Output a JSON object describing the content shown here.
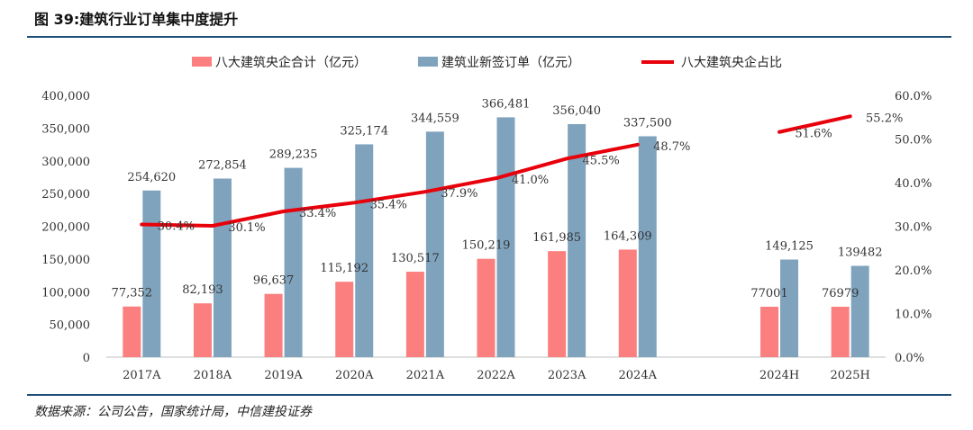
{
  "figure": {
    "title": "图 39:建筑行业订单集中度提升",
    "source": "数据来源：公司公告，国家统计局，中信建投证券"
  },
  "colors": {
    "bar_pink": "#fb7f7f",
    "bar_blue": "#7fa3bd",
    "line_red": "#e8000b",
    "rule": "#1f4e79"
  },
  "chart_data": {
    "type": "bar",
    "title": "",
    "categories": [
      "2017A",
      "2018A",
      "2019A",
      "2020A",
      "2021A",
      "2022A",
      "2023A",
      "2024A",
      "",
      "2024H",
      "2025H"
    ],
    "series": [
      {
        "name": "八大建筑央企合计（亿元）",
        "type": "bar",
        "axis": "left",
        "values": [
          77352,
          82193,
          96637,
          115192,
          130517,
          150219,
          161985,
          164309,
          null,
          77001,
          76979
        ],
        "labels": [
          "77,352",
          "82,193",
          "96,637",
          "115,192",
          "130,517",
          "150,219",
          "161,985",
          "164,309",
          "",
          "77001",
          "76979"
        ]
      },
      {
        "name": "建筑业新签订单（亿元）",
        "type": "bar",
        "axis": "left",
        "values": [
          254620,
          272854,
          289235,
          325174,
          344559,
          366481,
          356040,
          337500,
          null,
          149125,
          139482
        ],
        "labels": [
          "254,620",
          "272,854",
          "289,235",
          "325,174",
          "344,559",
          "366,481",
          "356,040",
          "337,500",
          "",
          "149,125",
          "139482"
        ]
      },
      {
        "name": "八大建筑央企占比",
        "type": "line",
        "axis": "right",
        "values": [
          30.4,
          30.1,
          33.4,
          35.4,
          37.9,
          41.0,
          45.5,
          48.7,
          null,
          51.6,
          55.2
        ],
        "labels": [
          "30.4%",
          "30.1%",
          "33.4%",
          "35.4%",
          "37.9%",
          "41.0%",
          "45.5%",
          "48.7%",
          "",
          "51.6%",
          "55.2%"
        ]
      }
    ],
    "y_left": {
      "range": [
        0,
        400000
      ],
      "ticks": [
        0,
        50000,
        100000,
        150000,
        200000,
        250000,
        300000,
        350000,
        400000
      ],
      "tick_labels": [
        "0",
        "50,000",
        "100,000",
        "150,000",
        "200,000",
        "250,000",
        "300,000",
        "350,000",
        "400,000"
      ]
    },
    "y_right": {
      "range": [
        0,
        60
      ],
      "ticks": [
        0,
        10,
        20,
        30,
        40,
        50,
        60
      ],
      "tick_labels": [
        "0.0%",
        "10.0%",
        "20.0%",
        "30.0%",
        "40.0%",
        "50.0%",
        "60.0%"
      ]
    },
    "legend": {
      "position": "top",
      "entries": [
        "八大建筑央企合计（亿元）",
        "建筑业新签订单（亿元）",
        "八大建筑央企占比"
      ]
    },
    "grid": false
  }
}
